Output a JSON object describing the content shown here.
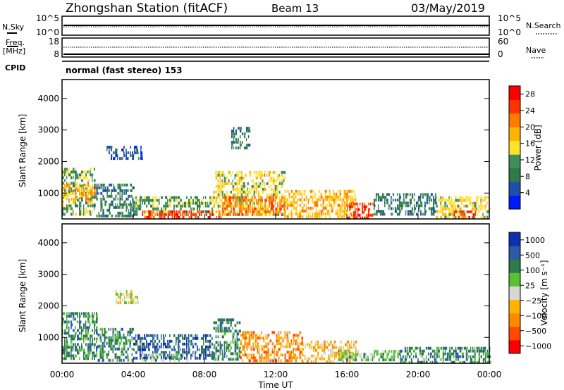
{
  "header": {
    "station": "Zhongshan Station (fitACF)",
    "beam": "Beam 13",
    "date": "03/May/2019"
  },
  "top_strips": {
    "nsky": {
      "left_label": "N.Sky",
      "left_tick_hi": "10^5",
      "left_tick_lo": "10^0",
      "right_label": "N.Search",
      "right_tick_hi": "10^5",
      "right_tick_lo": "10^0"
    },
    "freq": {
      "left_label_1": "Freq.",
      "left_label_2": "[MHz]",
      "left_tick_hi": "18",
      "left_tick_lo": "8",
      "right_label": "Nave",
      "right_tick_hi": "60",
      "right_tick_lo": "0"
    },
    "cpid": {
      "label": "CPID",
      "text": "normal (fast stereo) 153"
    }
  },
  "x_axis": {
    "label": "Time UT",
    "ticks": [
      "00:00",
      "04:00",
      "08:00",
      "12:00",
      "16:00",
      "20:00",
      "00:00"
    ]
  },
  "colors": {
    "power": [
      "#0019ff",
      "#1f4fa8",
      "#2e7a4a",
      "#3f8f5a",
      "#ffe22e",
      "#ffb400",
      "#ff7a00",
      "#ff3300",
      "#ff0000"
    ],
    "velocity": [
      "#ff0000",
      "#ff4a00",
      "#ff8a00",
      "#ffb400",
      "#d8d8d0",
      "#56c234",
      "#2e7a4a",
      "#2a5aa8",
      "#0f2fb0"
    ]
  },
  "chart_data": [
    {
      "type": "heatmap",
      "panel": "power",
      "ylabel": "Slant Range [km]",
      "yticks": [
        "1000",
        "2000",
        "3000",
        "4000"
      ],
      "ylim": [
        180,
        4600
      ],
      "xlim": [
        0,
        24
      ],
      "colorbar_label": "Power [dB]",
      "colorbar_ticks": [
        "4",
        "8",
        "12",
        "16",
        "20",
        "24",
        "28"
      ],
      "clim": [
        0,
        30
      ],
      "regions": [
        {
          "t0": 0.0,
          "t1": 1.8,
          "r0": 300,
          "r1": 1800,
          "level": 3
        },
        {
          "t0": 0.0,
          "t1": 1.8,
          "r0": 700,
          "r1": 1300,
          "level": 5
        },
        {
          "t0": 1.8,
          "t1": 4.0,
          "r0": 300,
          "r1": 1300,
          "level": 2
        },
        {
          "t0": 2.5,
          "t1": 4.5,
          "r0": 2100,
          "r1": 2500,
          "level": 1
        },
        {
          "t0": 4.0,
          "t1": 8.5,
          "r0": 300,
          "r1": 900,
          "level": 3
        },
        {
          "t0": 4.5,
          "t1": 9.0,
          "r0": 250,
          "r1": 450,
          "level": 7
        },
        {
          "t0": 8.5,
          "t1": 12.5,
          "r0": 300,
          "r1": 1700,
          "level": 4
        },
        {
          "t0": 9.0,
          "t1": 12.5,
          "r0": 300,
          "r1": 900,
          "level": 6
        },
        {
          "t0": 9.5,
          "t1": 10.5,
          "r0": 2400,
          "r1": 3100,
          "level": 2
        },
        {
          "t0": 12.5,
          "t1": 16.5,
          "r0": 250,
          "r1": 1100,
          "level": 5
        },
        {
          "t0": 16.0,
          "t1": 17.5,
          "r0": 250,
          "r1": 700,
          "level": 7
        },
        {
          "t0": 17.5,
          "t1": 21.0,
          "r0": 300,
          "r1": 1000,
          "level": 2
        },
        {
          "t0": 21.0,
          "t1": 24.0,
          "r0": 250,
          "r1": 900,
          "level": 4
        },
        {
          "t0": 22.0,
          "t1": 23.2,
          "r0": 250,
          "r1": 450,
          "level": 7
        }
      ]
    },
    {
      "type": "heatmap",
      "panel": "velocity",
      "ylabel": "Slant Range [km]",
      "yticks": [
        "1000",
        "2000",
        "3000",
        "4000"
      ],
      "ylim": [
        180,
        4600
      ],
      "xlim": [
        0,
        24
      ],
      "colorbar_label": "Velocity [m s⁻¹]",
      "colorbar_ticks": [
        "1000",
        "500",
        "100",
        "25",
        "−25",
        "−100",
        "−500",
        "−1000"
      ],
      "regions": [
        {
          "t0": 0.0,
          "t1": 2.0,
          "r0": 300,
          "r1": 1800,
          "level": 6
        },
        {
          "t0": 2.0,
          "t1": 4.0,
          "r0": 300,
          "r1": 1300,
          "level": 6
        },
        {
          "t0": 3.0,
          "t1": 4.2,
          "r0": 2100,
          "r1": 2500,
          "level": 4
        },
        {
          "t0": 4.0,
          "t1": 8.5,
          "r0": 300,
          "r1": 1100,
          "level": 7
        },
        {
          "t0": 4.5,
          "t1": 7.0,
          "r0": 250,
          "r1": 500,
          "level": 5
        },
        {
          "t0": 8.5,
          "t1": 10.0,
          "r0": 300,
          "r1": 1600,
          "level": 6
        },
        {
          "t0": 10.0,
          "t1": 13.5,
          "r0": 300,
          "r1": 1200,
          "level": 2
        },
        {
          "t0": 13.5,
          "t1": 16.5,
          "r0": 250,
          "r1": 900,
          "level": 3
        },
        {
          "t0": 15.5,
          "t1": 19.0,
          "r0": 250,
          "r1": 600,
          "level": 5
        },
        {
          "t0": 19.0,
          "t1": 24.0,
          "r0": 250,
          "r1": 700,
          "level": 6
        }
      ]
    }
  ]
}
